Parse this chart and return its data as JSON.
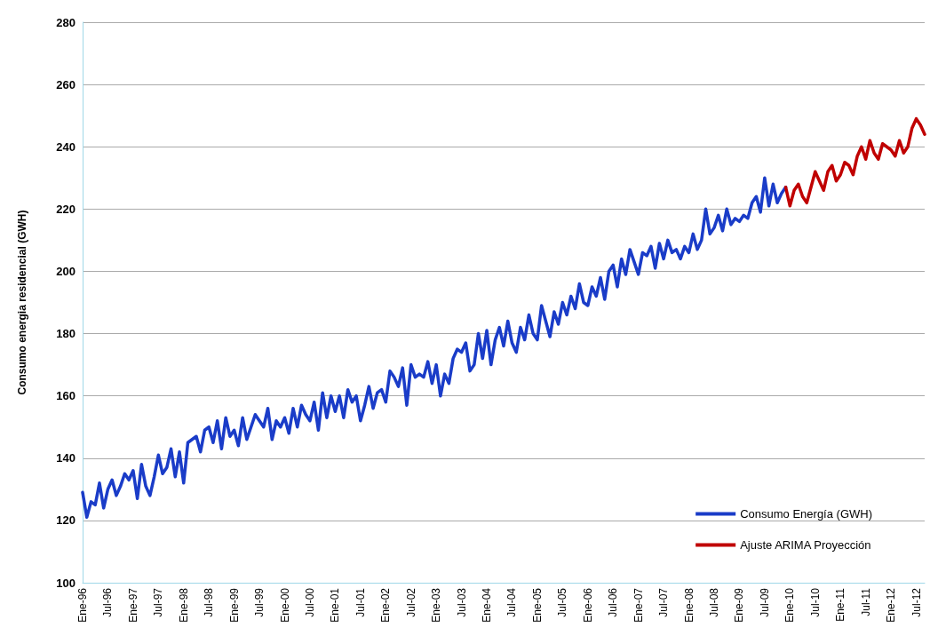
{
  "chart_data": {
    "type": "line",
    "ylabel": "Consumo energia residencial (GWH)",
    "categories": [
      "Ene-96",
      null,
      null,
      null,
      null,
      null,
      "Jul-96",
      null,
      null,
      null,
      null,
      null,
      "Ene-97",
      null,
      null,
      null,
      null,
      null,
      "Jul-97",
      null,
      null,
      null,
      null,
      null,
      "Ene-98",
      null,
      null,
      null,
      null,
      null,
      "Jul-98",
      null,
      null,
      null,
      null,
      null,
      "Ene-99",
      null,
      null,
      null,
      null,
      null,
      "Jul-99",
      null,
      null,
      null,
      null,
      null,
      "Ene-00",
      null,
      null,
      null,
      null,
      null,
      "Jul-00",
      null,
      null,
      null,
      null,
      null,
      "Ene-01",
      null,
      null,
      null,
      null,
      null,
      "Jul-01",
      null,
      null,
      null,
      null,
      null,
      "Ene-02",
      null,
      null,
      null,
      null,
      null,
      "Jul-02",
      null,
      null,
      null,
      null,
      null,
      "Ene-03",
      null,
      null,
      null,
      null,
      null,
      "Jul-03",
      null,
      null,
      null,
      null,
      null,
      "Ene-04",
      null,
      null,
      null,
      null,
      null,
      "Jul-04",
      null,
      null,
      null,
      null,
      null,
      "Ene-05",
      null,
      null,
      null,
      null,
      null,
      "Jul-05",
      null,
      null,
      null,
      null,
      null,
      "Ene-06",
      null,
      null,
      null,
      null,
      null,
      "Jul-06",
      null,
      null,
      null,
      null,
      null,
      "Ene-07",
      null,
      null,
      null,
      null,
      null,
      "Jul-07",
      null,
      null,
      null,
      null,
      null,
      "Ene-08",
      null,
      null,
      null,
      null,
      null,
      "Jul-08",
      null,
      null,
      null,
      null,
      null,
      "Ene-09",
      null,
      null,
      null,
      null,
      null,
      "Jul-09",
      null,
      null,
      null,
      null,
      null,
      "Ene-10",
      null,
      null,
      null,
      null,
      null,
      "Jul-10",
      null,
      null,
      null,
      null,
      null,
      "Ene-11",
      null,
      null,
      null,
      null,
      null,
      "Jul-11",
      null,
      null,
      null,
      null,
      null,
      "Ene-12",
      null,
      null,
      null,
      null,
      null,
      "Jul-12",
      null,
      null
    ],
    "series": [
      {
        "name": "Consumo Energía (GWH)",
        "color": "#1a3cc8",
        "values": [
          129,
          121,
          126,
          125,
          132,
          124,
          130,
          133,
          128,
          131,
          135,
          133,
          136,
          127,
          138,
          131,
          128,
          134,
          141,
          135,
          137,
          143,
          134,
          142,
          132,
          145,
          146,
          147,
          142,
          149,
          150,
          145,
          152,
          143,
          153,
          147,
          149,
          144,
          153,
          146,
          150,
          154,
          152,
          150,
          156,
          146,
          152,
          150,
          153,
          148,
          156,
          150,
          157,
          154,
          152,
          158,
          149,
          161,
          153,
          160,
          155,
          160,
          153,
          162,
          158,
          160,
          152,
          157,
          163,
          156,
          161,
          162,
          158,
          168,
          166,
          163,
          169,
          157,
          170,
          166,
          167,
          166,
          171,
          164,
          170,
          160,
          167,
          164,
          172,
          175,
          174,
          177,
          168,
          170,
          180,
          172,
          181,
          170,
          178,
          182,
          176,
          184,
          177,
          174,
          182,
          178,
          186,
          180,
          178,
          189,
          184,
          179,
          187,
          183,
          190,
          186,
          192,
          188,
          196,
          190,
          189,
          195,
          192,
          198,
          191,
          200,
          202,
          195,
          204,
          199,
          207,
          203,
          199,
          206,
          205,
          208,
          201,
          209,
          204,
          210,
          206,
          207,
          204,
          208,
          206,
          212,
          207,
          210,
          220,
          212,
          214,
          218,
          213,
          220,
          215,
          217,
          216,
          218,
          217,
          222,
          224,
          219,
          230,
          221,
          228,
          222,
          225,
          227,
          null,
          null,
          null,
          null,
          null,
          null,
          null,
          null,
          null,
          null,
          null,
          null,
          null,
          null,
          null,
          null,
          null,
          null,
          null,
          null,
          null,
          null,
          null,
          null,
          null,
          null,
          null,
          null,
          null,
          null,
          null,
          null,
          null
        ]
      },
      {
        "name": "Ajuste ARIMA Proyección",
        "color": "#c00000",
        "values": [
          null,
          null,
          null,
          null,
          null,
          null,
          null,
          null,
          null,
          null,
          null,
          null,
          null,
          null,
          null,
          null,
          null,
          null,
          null,
          null,
          null,
          null,
          null,
          null,
          null,
          null,
          null,
          null,
          null,
          null,
          null,
          null,
          null,
          null,
          null,
          null,
          null,
          null,
          null,
          null,
          null,
          null,
          null,
          null,
          null,
          null,
          null,
          null,
          null,
          null,
          null,
          null,
          null,
          null,
          null,
          null,
          null,
          null,
          null,
          null,
          null,
          null,
          null,
          null,
          null,
          null,
          null,
          null,
          null,
          null,
          null,
          null,
          null,
          null,
          null,
          null,
          null,
          null,
          null,
          null,
          null,
          null,
          null,
          null,
          null,
          null,
          null,
          null,
          null,
          null,
          null,
          null,
          null,
          null,
          null,
          null,
          null,
          null,
          null,
          null,
          null,
          null,
          null,
          null,
          null,
          null,
          null,
          null,
          null,
          null,
          null,
          null,
          null,
          null,
          null,
          null,
          null,
          null,
          null,
          null,
          null,
          null,
          null,
          null,
          null,
          null,
          null,
          null,
          null,
          null,
          null,
          null,
          null,
          null,
          null,
          null,
          null,
          null,
          null,
          null,
          null,
          null,
          null,
          null,
          null,
          null,
          null,
          null,
          null,
          null,
          null,
          null,
          null,
          null,
          null,
          null,
          null,
          null,
          null,
          null,
          null,
          null,
          null,
          null,
          null,
          null,
          null,
          227,
          221,
          226,
          228,
          224,
          222,
          227,
          232,
          229,
          226,
          232,
          234,
          229,
          231,
          235,
          234,
          231,
          237,
          240,
          236,
          242,
          238,
          236,
          241,
          240,
          239,
          237,
          242,
          238,
          240,
          246,
          249,
          247,
          244
        ]
      }
    ],
    "ylim": [
      100,
      280
    ],
    "yticks": [
      100,
      120,
      140,
      160,
      180,
      200,
      220,
      240,
      260,
      280
    ],
    "grid": "y",
    "legend": "bottom right",
    "marker": "none",
    "line_style": "solid"
  }
}
